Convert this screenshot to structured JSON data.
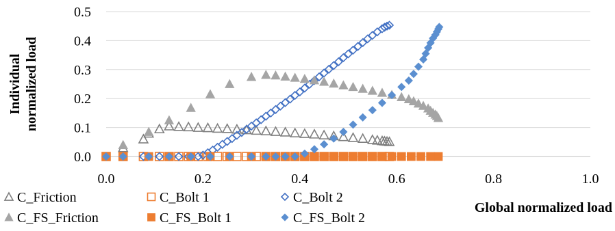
{
  "chart_data": {
    "type": "scatter",
    "title": "",
    "xlabel": "Global normalized load",
    "ylabel_lines": [
      "Individual",
      "normalized load"
    ],
    "xlim": [
      0,
      1
    ],
    "ylim": [
      0,
      0.5
    ],
    "x_ticks": [
      "0.0",
      "0.2",
      "0.4",
      "0.6",
      "0.8",
      "1.0"
    ],
    "y_ticks": [
      "0.0",
      "0.1",
      "0.2",
      "0.3",
      "0.4",
      "0.5"
    ],
    "grid": "horizontal",
    "legend_position": "bottom-left",
    "series": [
      {
        "name": "C_Friction",
        "marker": "triangle-open",
        "color": "#7f7f7f",
        "points": [
          [
            0.035,
            0.03
          ],
          [
            0.077,
            0.06
          ],
          [
            0.088,
            0.08
          ],
          [
            0.11,
            0.095
          ],
          [
            0.13,
            0.105
          ],
          [
            0.15,
            0.103
          ],
          [
            0.17,
            0.102
          ],
          [
            0.19,
            0.1
          ],
          [
            0.21,
            0.099
          ],
          [
            0.23,
            0.097
          ],
          [
            0.25,
            0.096
          ],
          [
            0.27,
            0.094
          ],
          [
            0.29,
            0.092
          ],
          [
            0.31,
            0.09
          ],
          [
            0.33,
            0.088
          ],
          [
            0.35,
            0.086
          ],
          [
            0.37,
            0.084
          ],
          [
            0.39,
            0.081
          ],
          [
            0.41,
            0.079
          ],
          [
            0.43,
            0.077
          ],
          [
            0.45,
            0.074
          ],
          [
            0.47,
            0.071
          ],
          [
            0.49,
            0.068
          ],
          [
            0.51,
            0.065
          ],
          [
            0.53,
            0.062
          ],
          [
            0.55,
            0.058
          ],
          [
            0.56,
            0.056
          ],
          [
            0.57,
            0.054
          ],
          [
            0.575,
            0.053
          ],
          [
            0.58,
            0.052
          ],
          [
            0.585,
            0.051
          ]
        ]
      },
      {
        "name": "C_Bolt 1",
        "marker": "square-open",
        "color": "#ed7d31",
        "points": [
          [
            0.0,
            0.0
          ],
          [
            0.035,
            0.0
          ],
          [
            0.077,
            0.0
          ],
          [
            0.11,
            0.0
          ],
          [
            0.13,
            0.0
          ],
          [
            0.15,
            0.0
          ],
          [
            0.17,
            0.0
          ],
          [
            0.19,
            0.0
          ],
          [
            0.21,
            0.0
          ],
          [
            0.23,
            0.0
          ],
          [
            0.25,
            0.0
          ],
          [
            0.27,
            0.0
          ],
          [
            0.29,
            0.0
          ],
          [
            0.31,
            0.0
          ],
          [
            0.33,
            0.0
          ],
          [
            0.35,
            0.0
          ],
          [
            0.37,
            0.0
          ],
          [
            0.39,
            0.0
          ],
          [
            0.41,
            0.0
          ],
          [
            0.43,
            0.0
          ],
          [
            0.45,
            0.0
          ],
          [
            0.47,
            0.0
          ],
          [
            0.49,
            0.0
          ],
          [
            0.51,
            0.0
          ],
          [
            0.53,
            0.0
          ],
          [
            0.55,
            0.0
          ],
          [
            0.57,
            0.0
          ],
          [
            0.585,
            0.0
          ]
        ]
      },
      {
        "name": "C_Bolt 2",
        "marker": "diamond-open",
        "color": "#4472c4",
        "points": [
          [
            0.0,
            0.0
          ],
          [
            0.035,
            0.0
          ],
          [
            0.077,
            0.0
          ],
          [
            0.11,
            0.0
          ],
          [
            0.13,
            0.0
          ],
          [
            0.15,
            0.0
          ],
          [
            0.17,
            0.0
          ],
          [
            0.19,
            0.0
          ],
          [
            0.2,
            0.005
          ],
          [
            0.21,
            0.013
          ],
          [
            0.22,
            0.022
          ],
          [
            0.23,
            0.032
          ],
          [
            0.24,
            0.042
          ],
          [
            0.25,
            0.052
          ],
          [
            0.26,
            0.062
          ],
          [
            0.27,
            0.073
          ],
          [
            0.28,
            0.083
          ],
          [
            0.29,
            0.094
          ],
          [
            0.3,
            0.105
          ],
          [
            0.31,
            0.116
          ],
          [
            0.32,
            0.127
          ],
          [
            0.33,
            0.139
          ],
          [
            0.34,
            0.15
          ],
          [
            0.35,
            0.162
          ],
          [
            0.36,
            0.174
          ],
          [
            0.37,
            0.186
          ],
          [
            0.38,
            0.198
          ],
          [
            0.39,
            0.211
          ],
          [
            0.4,
            0.223
          ],
          [
            0.41,
            0.236
          ],
          [
            0.42,
            0.249
          ],
          [
            0.43,
            0.262
          ],
          [
            0.44,
            0.275
          ],
          [
            0.45,
            0.288
          ],
          [
            0.46,
            0.301
          ],
          [
            0.47,
            0.314
          ],
          [
            0.48,
            0.327
          ],
          [
            0.49,
            0.341
          ],
          [
            0.5,
            0.354
          ],
          [
            0.51,
            0.367
          ],
          [
            0.52,
            0.38
          ],
          [
            0.53,
            0.393
          ],
          [
            0.54,
            0.406
          ],
          [
            0.55,
            0.418
          ],
          [
            0.56,
            0.43
          ],
          [
            0.57,
            0.441
          ],
          [
            0.575,
            0.446
          ],
          [
            0.58,
            0.45
          ],
          [
            0.585,
            0.453
          ]
        ]
      },
      {
        "name": "C_FS_Friction",
        "marker": "triangle-filled",
        "color": "#a5a5a5",
        "points": [
          [
            0.035,
            0.04
          ],
          [
            0.088,
            0.085
          ],
          [
            0.13,
            0.125
          ],
          [
            0.175,
            0.168
          ],
          [
            0.215,
            0.215
          ],
          [
            0.255,
            0.25
          ],
          [
            0.3,
            0.275
          ],
          [
            0.33,
            0.282
          ],
          [
            0.35,
            0.28
          ],
          [
            0.37,
            0.276
          ],
          [
            0.39,
            0.272
          ],
          [
            0.41,
            0.268
          ],
          [
            0.43,
            0.263
          ],
          [
            0.45,
            0.258
          ],
          [
            0.47,
            0.252
          ],
          [
            0.49,
            0.246
          ],
          [
            0.51,
            0.24
          ],
          [
            0.53,
            0.234
          ],
          [
            0.55,
            0.227
          ],
          [
            0.57,
            0.22
          ],
          [
            0.59,
            0.213
          ],
          [
            0.61,
            0.205
          ],
          [
            0.625,
            0.198
          ],
          [
            0.635,
            0.191
          ],
          [
            0.645,
            0.183
          ],
          [
            0.655,
            0.175
          ],
          [
            0.665,
            0.166
          ],
          [
            0.67,
            0.158
          ],
          [
            0.675,
            0.151
          ],
          [
            0.68,
            0.145
          ],
          [
            0.683,
            0.14
          ],
          [
            0.686,
            0.133
          ]
        ]
      },
      {
        "name": "C_FS_Bolt 1",
        "marker": "square-filled",
        "color": "#ed7d31",
        "points": [
          [
            0.0,
            0.0
          ],
          [
            0.035,
            0.0
          ],
          [
            0.088,
            0.0
          ],
          [
            0.13,
            0.0
          ],
          [
            0.175,
            0.0
          ],
          [
            0.215,
            0.0
          ],
          [
            0.255,
            0.0
          ],
          [
            0.3,
            0.0
          ],
          [
            0.33,
            0.0
          ],
          [
            0.35,
            0.0
          ],
          [
            0.37,
            0.0
          ],
          [
            0.39,
            0.0
          ],
          [
            0.41,
            0.0
          ],
          [
            0.43,
            0.0
          ],
          [
            0.45,
            0.0
          ],
          [
            0.47,
            0.0
          ],
          [
            0.49,
            0.0
          ],
          [
            0.51,
            0.0
          ],
          [
            0.53,
            0.0
          ],
          [
            0.55,
            0.0
          ],
          [
            0.57,
            0.0
          ],
          [
            0.59,
            0.0
          ],
          [
            0.61,
            0.0
          ],
          [
            0.63,
            0.0
          ],
          [
            0.65,
            0.0
          ],
          [
            0.67,
            0.0
          ],
          [
            0.686,
            0.0
          ]
        ]
      },
      {
        "name": "C_FS_Bolt 2",
        "marker": "diamond-filled",
        "color": "#5b8fd0",
        "points": [
          [
            0.0,
            0.0
          ],
          [
            0.035,
            0.0
          ],
          [
            0.088,
            0.0
          ],
          [
            0.13,
            0.0
          ],
          [
            0.175,
            0.0
          ],
          [
            0.215,
            0.0
          ],
          [
            0.255,
            0.0
          ],
          [
            0.3,
            0.0
          ],
          [
            0.33,
            0.0
          ],
          [
            0.35,
            0.0
          ],
          [
            0.37,
            0.0
          ],
          [
            0.39,
            0.0
          ],
          [
            0.41,
            0.01
          ],
          [
            0.43,
            0.025
          ],
          [
            0.45,
            0.042
          ],
          [
            0.47,
            0.062
          ],
          [
            0.49,
            0.085
          ],
          [
            0.51,
            0.11
          ],
          [
            0.53,
            0.135
          ],
          [
            0.55,
            0.16
          ],
          [
            0.57,
            0.185
          ],
          [
            0.59,
            0.212
          ],
          [
            0.61,
            0.24
          ],
          [
            0.625,
            0.262
          ],
          [
            0.635,
            0.285
          ],
          [
            0.645,
            0.31
          ],
          [
            0.655,
            0.335
          ],
          [
            0.66,
            0.355
          ],
          [
            0.665,
            0.375
          ],
          [
            0.67,
            0.392
          ],
          [
            0.675,
            0.408
          ],
          [
            0.68,
            0.42
          ],
          [
            0.683,
            0.43
          ],
          [
            0.686,
            0.44
          ],
          [
            0.688,
            0.447
          ]
        ]
      }
    ]
  }
}
